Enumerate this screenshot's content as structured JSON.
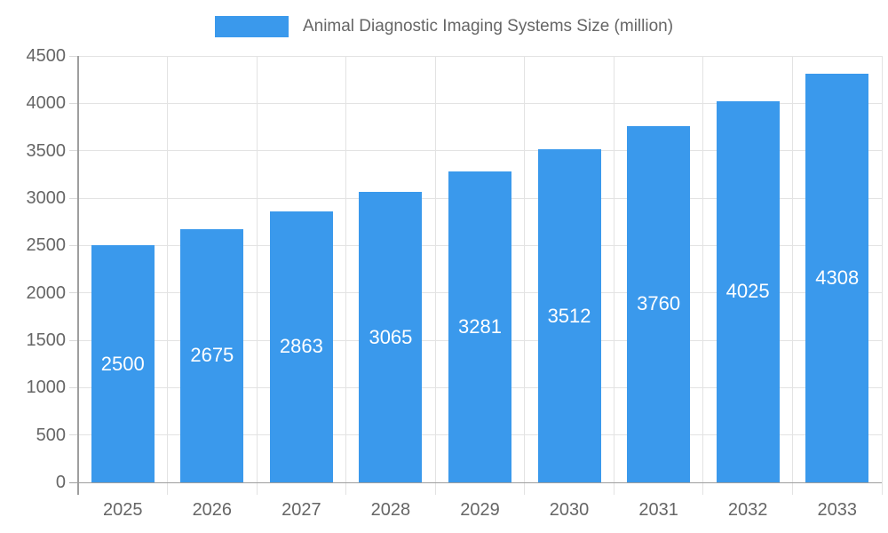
{
  "legend": {
    "label": "Animal Diagnostic Imaging Systems Size (million)",
    "position": "top"
  },
  "chart_data": {
    "type": "bar",
    "title": "Animal Diagnostic Imaging Systems Size (million)",
    "categories": [
      "2025",
      "2026",
      "2027",
      "2028",
      "2029",
      "2030",
      "2031",
      "2032",
      "2033"
    ],
    "series": [
      {
        "name": "Animal Diagnostic Imaging Systems Size (million)",
        "values": [
          2500,
          2675,
          2863,
          3065,
          3281,
          3512,
          3760,
          4025,
          4308
        ]
      }
    ],
    "data_labels": [
      "2500",
      "2675",
      "2863",
      "3065",
      "3281",
      "3512",
      "3760",
      "4025",
      "4308"
    ],
    "data_label_position": "inside-center",
    "xlabel": "",
    "ylabel": "",
    "ylim": [
      0,
      4500
    ],
    "yticks": [
      0,
      500,
      1000,
      1500,
      2000,
      2500,
      3000,
      3500,
      4000,
      4500
    ],
    "grid": {
      "horizontal": true,
      "vertical": true
    },
    "legend_position": "top"
  },
  "colors": {
    "bar": "#3A99EC",
    "bar_label": "#FFFFFF",
    "axis_line": "#9E9E9E",
    "grid_line": "#E3E3E3",
    "tick_line": "#D9D9D9",
    "axis_text": "#666666",
    "legend_text": "#666666",
    "background": "#FFFFFF"
  }
}
